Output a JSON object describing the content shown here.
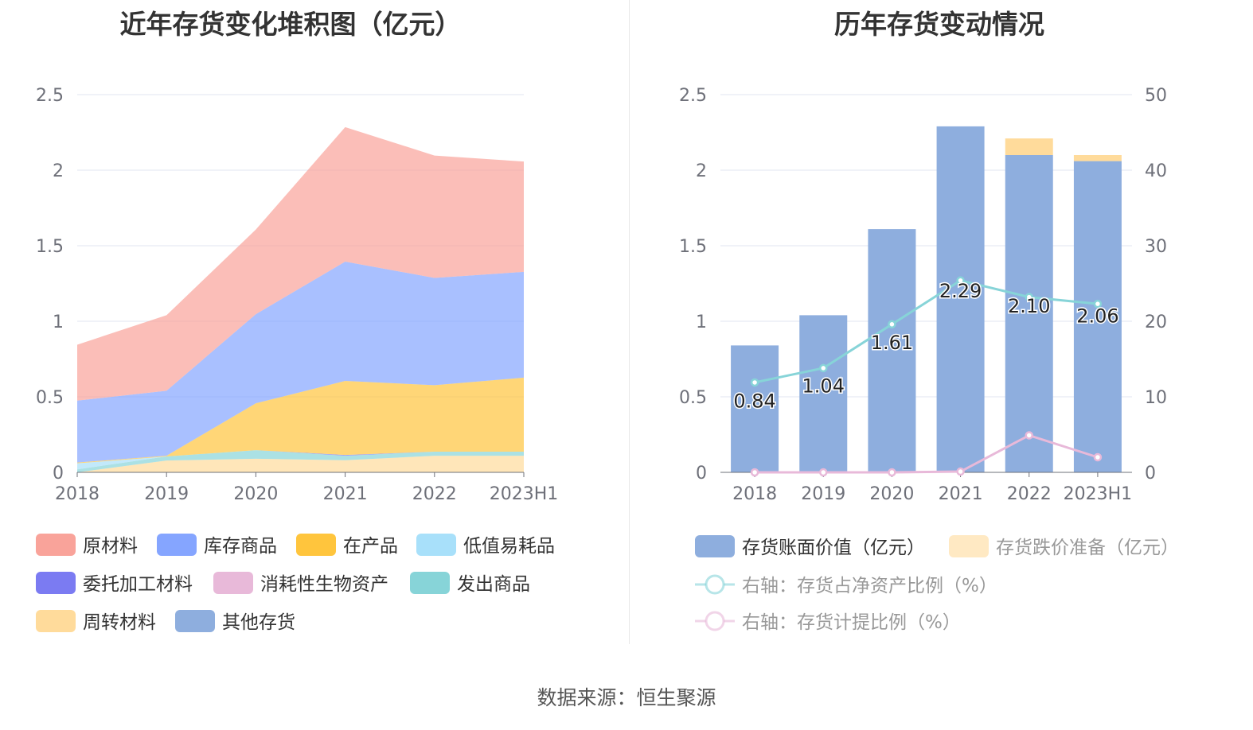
{
  "chart_data": [
    {
      "type": "area",
      "stacked": true,
      "title": "近年存货变化堆积图（亿元）",
      "categories": [
        "2018",
        "2019",
        "2020",
        "2021",
        "2022",
        "2023H1"
      ],
      "ylim": [
        0,
        2.5
      ],
      "yticks": [
        "0",
        "0.5",
        "1",
        "1.5",
        "2",
        "2.5"
      ],
      "grid": true,
      "legend_placement": "bottom",
      "series": [
        {
          "name": "原材料",
          "color": "#f9a39a",
          "values": [
            0.37,
            0.5,
            0.56,
            0.89,
            0.81,
            0.73
          ]
        },
        {
          "name": "库存商品",
          "color": "#85a5ff",
          "values": [
            0.41,
            0.43,
            0.59,
            0.79,
            0.71,
            0.7
          ]
        },
        {
          "name": "在产品",
          "color": "#ffc53d",
          "values": [
            0.005,
            0.005,
            0.31,
            0.49,
            0.44,
            0.49
          ]
        },
        {
          "name": "低值易耗品",
          "color": "#a8e0fa",
          "values": [
            0.04,
            0,
            0,
            0,
            0,
            0
          ]
        },
        {
          "name": "委托加工材料",
          "color": "#7b7bf2",
          "values": [
            0,
            0,
            0,
            0.005,
            0,
            0
          ]
        },
        {
          "name": "消耗性生物资产",
          "color": "#e8b9d9",
          "values": [
            0,
            0,
            0,
            0,
            0,
            0
          ]
        },
        {
          "name": "发出商品",
          "color": "#87d4d8",
          "values": [
            0.02,
            0.027,
            0.057,
            0.03,
            0.027,
            0.027
          ]
        },
        {
          "name": "周转材料",
          "color": "#ffdb9b",
          "values": [
            0,
            0.078,
            0.09,
            0.08,
            0.11,
            0.11
          ]
        },
        {
          "name": "其他存货",
          "color": "#8eaede",
          "values": [
            0,
            0,
            0,
            0,
            0,
            0
          ]
        }
      ]
    },
    {
      "type": "bar",
      "stacked": true,
      "title": "历年存货变动情况",
      "categories": [
        "2018",
        "2019",
        "2020",
        "2021",
        "2022",
        "2023H1"
      ],
      "ylim": [
        0,
        2.5
      ],
      "yticks": [
        "0",
        "0.5",
        "1",
        "1.5",
        "2",
        "2.5"
      ],
      "y2lim": [
        0,
        50
      ],
      "y2ticks": [
        "0",
        "10",
        "20",
        "30",
        "40",
        "50"
      ],
      "grid": true,
      "legend_placement": "bottom",
      "series": [
        {
          "name": "存货账面价值（亿元）",
          "color": "#8eaede",
          "kind": "bar",
          "values": [
            0.84,
            1.04,
            1.61,
            2.29,
            2.1,
            2.06
          ],
          "labels": [
            "0.84",
            "1.04",
            "1.61",
            "2.29",
            "2.10",
            "2.06"
          ]
        },
        {
          "name": "存货跌价准备（亿元）",
          "color": "#ffdb9b",
          "kind": "bar",
          "values": [
            0,
            0,
            0,
            0,
            0.11,
            0.04
          ]
        },
        {
          "name": "右轴：存货占净资产比例（%）",
          "color": "#87d4d8",
          "kind": "line",
          "axis": "right",
          "values": [
            11.9,
            13.8,
            19.6,
            25.4,
            23.2,
            22.3
          ]
        },
        {
          "name": "右轴：存货计提比例（%）",
          "color": "#e8b9d9",
          "kind": "line",
          "axis": "right",
          "values": [
            0,
            0,
            0,
            0.1,
            4.9,
            2.0
          ]
        }
      ]
    }
  ],
  "source": "数据来源：恒生聚源"
}
